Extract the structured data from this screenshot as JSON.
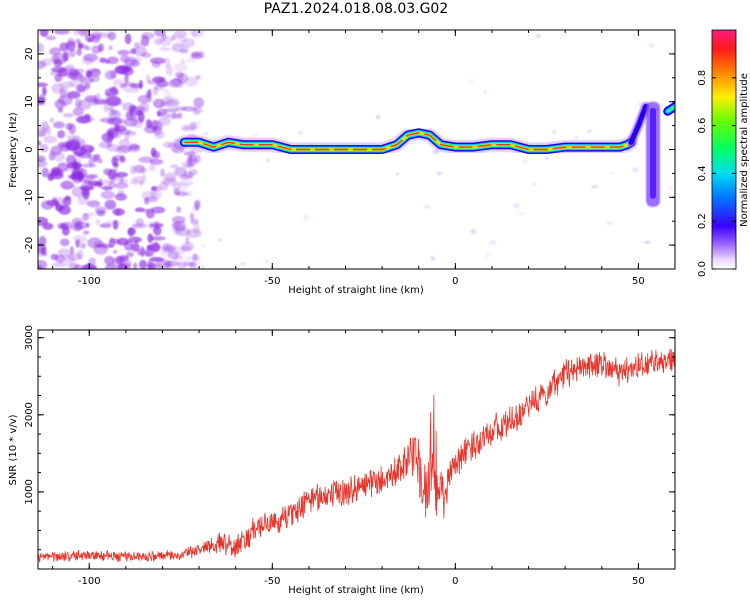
{
  "title": "PAZ1.2024.018.08.03.G02",
  "colors": {
    "snr_line": "#e8342a",
    "scatter_cloud": "#8a2be2",
    "track_core": "#e8342a"
  },
  "chart_data": [
    {
      "type": "heatmap",
      "xlabel": "Height of straight line (km)",
      "ylabel": "Frequency (Hz)",
      "xlim": [
        -114,
        60
      ],
      "ylim": [
        -25,
        25
      ],
      "xticks": [
        -100,
        -50,
        0,
        50
      ],
      "yticks": [
        20,
        10,
        0,
        -10,
        -20
      ],
      "colorbar": {
        "label": "Normalized spectral amplitude",
        "range": [
          0,
          1
        ],
        "ticks": [
          "0.0",
          "0.2",
          "0.4",
          "0.6",
          "0.8"
        ],
        "colormap": "rainbow (white-violet-blue-cyan-green-yellow-red-pink)"
      },
      "ridge_frequency": {
        "height_km": [
          -74,
          -70,
          -66,
          -62,
          -58,
          -54,
          -50,
          -45,
          -40,
          -35,
          -30,
          -25,
          -20,
          -16,
          -13,
          -10,
          -7,
          -4,
          0,
          5,
          10,
          15,
          20,
          25,
          30,
          35,
          40,
          45,
          47,
          48
        ],
        "freq_hz": [
          1.5,
          1.5,
          0.5,
          1.5,
          1.0,
          1.0,
          1.0,
          0.0,
          0.0,
          0.0,
          0.0,
          0.0,
          0.0,
          1.0,
          3.0,
          3.5,
          3.0,
          1.0,
          0.5,
          0.5,
          1.0,
          1.0,
          0.0,
          0.0,
          0.5,
          0.5,
          0.5,
          0.5,
          1.0,
          1.5
        ]
      },
      "right_edge_features": {
        "steep_rise": {
          "height_km": [
            48,
            50,
            52
          ],
          "freq_hz": [
            1.5,
            5,
            9
          ]
        },
        "vertical_band": {
          "height_km": 54,
          "freq_hz_range": [
            -12,
            10
          ]
        },
        "top_right": {
          "height_km": [
            58,
            60
          ],
          "freq_hz": [
            8,
            9
          ]
        }
      },
      "noise_region_km": [
        -114,
        -72
      ]
    },
    {
      "type": "line",
      "xlabel": "Height of straight line (km)",
      "ylabel": "SNR (10 * v/v)",
      "xlim": [
        -114,
        60
      ],
      "ylim": [
        0,
        3100
      ],
      "xticks": [
        -100,
        -50,
        0,
        50
      ],
      "yticks": [
        1000,
        2000,
        3000
      ],
      "series": [
        {
          "x": [
            -114,
            -100,
            -90,
            -80,
            -75,
            -70,
            -65,
            -60,
            -55,
            -50,
            -45,
            -40,
            -35,
            -30,
            -25,
            -20,
            -15,
            -12,
            -10,
            -8,
            -6,
            -4,
            -2,
            0,
            5,
            10,
            15,
            20,
            25,
            30,
            35,
            40,
            45,
            50,
            55,
            60
          ],
          "y": [
            150,
            180,
            160,
            170,
            180,
            250,
            350,
            280,
            500,
            600,
            700,
            900,
            950,
            1000,
            1100,
            1150,
            1300,
            1500,
            1300,
            950,
            1050,
            950,
            1100,
            1400,
            1600,
            1800,
            1900,
            2100,
            2300,
            2550,
            2600,
            2650,
            2550,
            2650,
            2700,
            2700
          ],
          "noise_amplitude": [
            60,
            60,
            60,
            60,
            60,
            80,
            120,
            140,
            140,
            140,
            150,
            160,
            160,
            160,
            160,
            170,
            180,
            250,
            350,
            400,
            400,
            350,
            250,
            200,
            180,
            170,
            170,
            170,
            170,
            170,
            170,
            160,
            150,
            150,
            140,
            140
          ]
        }
      ]
    }
  ]
}
